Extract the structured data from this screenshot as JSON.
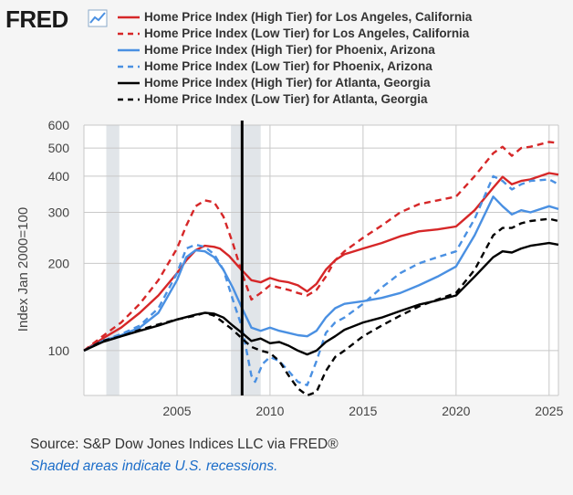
{
  "header": {
    "logo_text": "FRED",
    "logo_icon": "chart-line-icon"
  },
  "legend": [
    {
      "label": "Home Price Index (High Tier) for Los Angeles, California",
      "color": "#d62728",
      "dash": false
    },
    {
      "label": "Home Price Index (Low Tier) for Los Angeles, California",
      "color": "#d62728",
      "dash": true
    },
    {
      "label": "Home Price Index (High Tier) for Phoenix, Arizona",
      "color": "#4a90e2",
      "dash": false
    },
    {
      "label": "Home Price Index (Low Tier) for Phoenix, Arizona",
      "color": "#4a90e2",
      "dash": true
    },
    {
      "label": "Home Price Index (High Tier) for Atlanta, Georgia",
      "color": "#000000",
      "dash": false
    },
    {
      "label": "Home Price Index (Low Tier) for Atlanta, Georgia",
      "color": "#000000",
      "dash": true
    }
  ],
  "footer": {
    "source": "Source: S&P Dow Jones Indices LLC via FRED®",
    "note": "Shaded areas indicate U.S. recessions."
  },
  "chart_data": {
    "type": "line",
    "title": "",
    "xlabel": "",
    "ylabel": "Index Jan 2000=100",
    "yscale": "log",
    "xlim": [
      2000,
      2025.5
    ],
    "ylim": [
      70,
      600
    ],
    "x_ticks": [
      "2005",
      "2010",
      "2015",
      "2020",
      "2025"
    ],
    "y_ticks": [
      "100",
      "200",
      "300",
      "400",
      "500",
      "600"
    ],
    "recessions": [
      [
        2001.2,
        2001.9
      ],
      [
        2007.9,
        2009.5
      ]
    ],
    "marker_year": 2008.5,
    "series": [
      {
        "name": "Home Price Index (High Tier) for Los Angeles, California",
        "x": [
          2000,
          2001,
          2002,
          2003,
          2004,
          2005,
          2005.5,
          2006,
          2006.5,
          2007,
          2007.3,
          2007.8,
          2008.3,
          2009,
          2009.5,
          2010,
          2010.5,
          2011,
          2011.5,
          2012,
          2012.5,
          2013,
          2013.5,
          2014,
          2015,
          2016,
          2017,
          2018,
          2019,
          2020,
          2021,
          2022,
          2022.5,
          2023,
          2023.5,
          2024,
          2025,
          2025.5
        ],
        "values": [
          100,
          110,
          120,
          135,
          155,
          185,
          205,
          222,
          230,
          228,
          225,
          212,
          195,
          175,
          172,
          178,
          174,
          172,
          168,
          160,
          170,
          190,
          205,
          215,
          225,
          235,
          248,
          258,
          262,
          268,
          305,
          365,
          398,
          375,
          385,
          390,
          410,
          405
        ]
      },
      {
        "name": "Home Price Index (Low Tier) for Los Angeles, California",
        "x": [
          2000,
          2001,
          2002,
          2003,
          2004,
          2005,
          2005.5,
          2006,
          2006.5,
          2007,
          2007.5,
          2008,
          2008.5,
          2009,
          2009.5,
          2010,
          2010.5,
          2011,
          2011.5,
          2012,
          2012.5,
          2013,
          2013.5,
          2014,
          2015,
          2016,
          2017,
          2018,
          2019,
          2020,
          2021,
          2022,
          2022.5,
          2023,
          2023.5,
          2024,
          2025,
          2025.5
        ],
        "values": [
          100,
          112,
          125,
          145,
          175,
          225,
          270,
          315,
          330,
          325,
          290,
          235,
          185,
          150,
          158,
          168,
          165,
          162,
          158,
          155,
          162,
          180,
          205,
          220,
          245,
          270,
          300,
          320,
          330,
          340,
          400,
          480,
          505,
          470,
          500,
          505,
          525,
          520
        ]
      },
      {
        "name": "Home Price Index (High Tier) for Phoenix, Arizona",
        "x": [
          2000,
          2001,
          2002,
          2003,
          2004,
          2005,
          2005.5,
          2006,
          2006.5,
          2007,
          2007.5,
          2008,
          2008.5,
          2009,
          2009.5,
          2010,
          2010.5,
          2011,
          2011.5,
          2012,
          2012.5,
          2013,
          2013.5,
          2014,
          2015,
          2016,
          2017,
          2018,
          2019,
          2020,
          2021,
          2022,
          2022.5,
          2023,
          2023.5,
          2024,
          2025,
          2025.5
        ],
        "values": [
          100,
          108,
          113,
          120,
          135,
          175,
          210,
          222,
          220,
          210,
          190,
          165,
          140,
          120,
          117,
          120,
          117,
          115,
          113,
          112,
          117,
          130,
          140,
          145,
          148,
          152,
          158,
          168,
          180,
          195,
          250,
          340,
          315,
          295,
          305,
          300,
          315,
          308
        ]
      },
      {
        "name": "Home Price Index (Low Tier) for Phoenix, Arizona",
        "x": [
          2000,
          2001,
          2002,
          2003,
          2004,
          2005,
          2005.5,
          2006,
          2006.5,
          2007,
          2007.5,
          2008,
          2008.5,
          2009,
          2009.2,
          2009.6,
          2010,
          2010.5,
          2011,
          2011.5,
          2012,
          2012.5,
          2013,
          2013.5,
          2014,
          2015,
          2016,
          2017,
          2018,
          2019,
          2020,
          2021,
          2022,
          2022.5,
          2023,
          2023.5,
          2024,
          2025,
          2025.5
        ],
        "values": [
          100,
          108,
          114,
          122,
          140,
          185,
          225,
          232,
          228,
          215,
          190,
          150,
          120,
          82,
          78,
          90,
          95,
          92,
          85,
          78,
          76,
          92,
          115,
          125,
          130,
          145,
          165,
          185,
          200,
          210,
          220,
          285,
          400,
          385,
          360,
          375,
          385,
          390,
          375
        ]
      },
      {
        "name": "Home Price Index (High Tier) for Atlanta, Georgia",
        "x": [
          2000,
          2001,
          2002,
          2003,
          2004,
          2005,
          2006,
          2006.5,
          2007,
          2007.5,
          2008,
          2008.5,
          2009,
          2009.5,
          2010,
          2010.5,
          2011,
          2011.5,
          2012,
          2012.5,
          2013,
          2013.5,
          2014,
          2015,
          2016,
          2017,
          2018,
          2019,
          2020,
          2021,
          2022,
          2022.5,
          2023,
          2023.5,
          2024,
          2025,
          2025.5
        ],
        "values": [
          100,
          107,
          112,
          117,
          122,
          128,
          133,
          135,
          134,
          130,
          122,
          115,
          108,
          110,
          106,
          107,
          104,
          100,
          97,
          100,
          107,
          112,
          118,
          125,
          130,
          137,
          144,
          149,
          155,
          180,
          210,
          220,
          218,
          225,
          230,
          235,
          232
        ]
      },
      {
        "name": "Home Price Index (Low Tier) for Atlanta, Georgia",
        "x": [
          2000,
          2001,
          2002,
          2003,
          2004,
          2005,
          2006,
          2006.5,
          2007,
          2007.5,
          2008,
          2008.5,
          2009,
          2009.5,
          2010,
          2010.5,
          2011,
          2011.5,
          2012,
          2012.5,
          2013,
          2013.5,
          2014,
          2015,
          2016,
          2017,
          2018,
          2019,
          2020,
          2021,
          2022,
          2022.5,
          2023,
          2023.5,
          2024,
          2025,
          2025.5
        ],
        "values": [
          100,
          108,
          112,
          118,
          123,
          128,
          132,
          135,
          132,
          125,
          118,
          110,
          103,
          100,
          98,
          92,
          82,
          74,
          70,
          72,
          85,
          95,
          100,
          112,
          122,
          132,
          142,
          150,
          158,
          190,
          250,
          265,
          265,
          275,
          280,
          285,
          280
        ]
      }
    ]
  }
}
